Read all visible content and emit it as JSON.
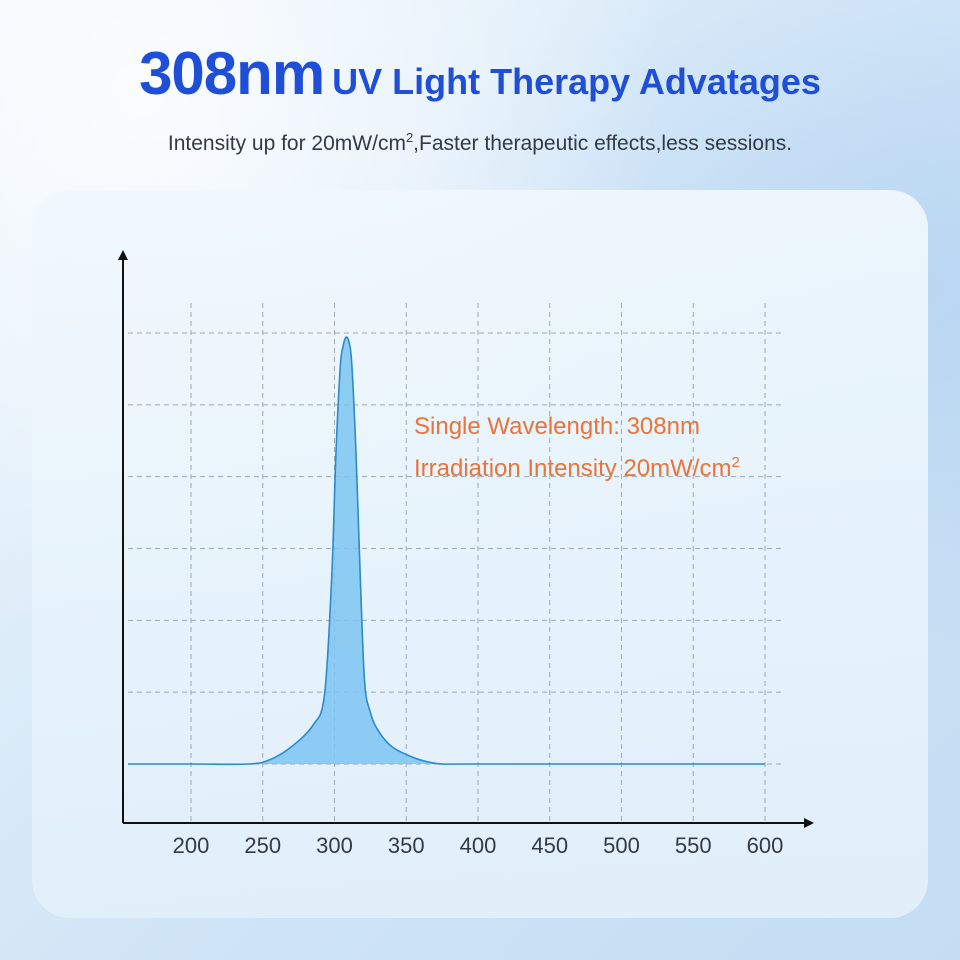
{
  "header": {
    "title_big": "308nm",
    "title_rest": "UV Light Therapy Advatages",
    "subtitle_main": "Intensity up for 20mW/cm",
    "subtitle_sup": "2",
    "subtitle_tail": ",Faster therapeutic effects,less sessions."
  },
  "annotation": {
    "line1": "Single Wavelength:  308nm",
    "line2": "Irradiation Intensity 20mW/cm",
    "line2_sup": "2"
  },
  "colors": {
    "title": "#1f4fd6",
    "annotation": "#e8743a",
    "fill": "#7cc4f1",
    "stroke": "#2b8bcb",
    "grid": "#9aa9b8"
  },
  "chart_data": {
    "type": "area",
    "xlabel": "",
    "ylabel": "",
    "x_ticks": [
      200,
      250,
      300,
      350,
      400,
      450,
      500,
      550,
      600
    ],
    "xlim": [
      155,
      600
    ],
    "ylim": [
      0,
      1
    ],
    "grid": true,
    "series": [
      {
        "x": [
          155,
          200,
          240,
          255,
          270,
          285,
          293,
          298,
          301,
          304,
          306,
          308,
          310,
          312,
          315,
          318,
          321,
          325,
          330,
          340,
          355,
          365,
          375,
          400,
          600
        ],
        "y": [
          0,
          0,
          0,
          0.01,
          0.04,
          0.09,
          0.16,
          0.43,
          0.72,
          0.92,
          0.97,
          0.99,
          0.98,
          0.93,
          0.72,
          0.43,
          0.19,
          0.12,
          0.08,
          0.04,
          0.015,
          0.005,
          0,
          0,
          0
        ]
      }
    ]
  }
}
